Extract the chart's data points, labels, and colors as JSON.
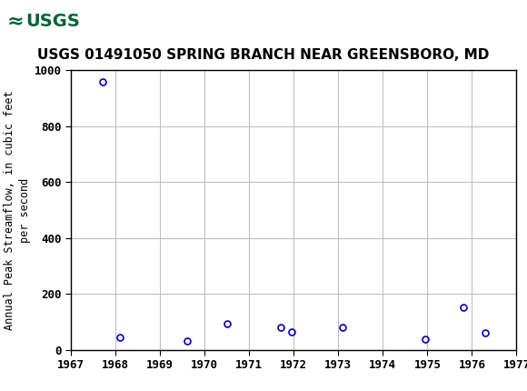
{
  "title": "USGS 01491050 SPRING BRANCH NEAR GREENSBORO, MD",
  "ylabel": "Annual Peak Streamflow, in cubic feet\nper second",
  "years": [
    1967.7,
    1968.1,
    1969.6,
    1970.5,
    1971.7,
    1971.95,
    1973.1,
    1974.95,
    1975.8,
    1976.3
  ],
  "values": [
    960,
    45,
    32,
    95,
    80,
    63,
    80,
    40,
    152,
    60
  ],
  "xlim": [
    1967,
    1977
  ],
  "ylim": [
    0,
    1000
  ],
  "xticks": [
    1967,
    1968,
    1969,
    1970,
    1971,
    1972,
    1973,
    1974,
    1975,
    1976,
    1977
  ],
  "yticks": [
    0,
    200,
    400,
    600,
    800,
    1000
  ],
  "marker_color": "#0000cc",
  "marker_size": 5,
  "grid_color": "#c0c0c0",
  "bg_color": "#ffffff",
  "header_color": "#006633",
  "title_fontsize": 11,
  "ylabel_fontsize": 8.5,
  "tick_fontsize": 9
}
